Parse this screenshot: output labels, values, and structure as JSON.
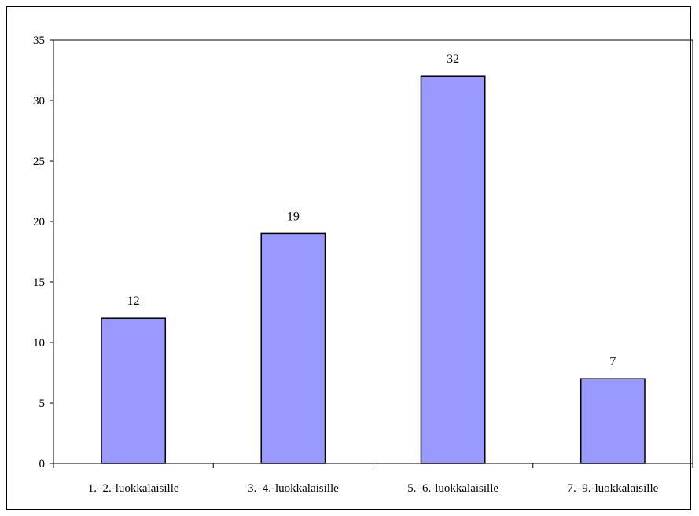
{
  "chart_data": {
    "type": "bar",
    "categories": [
      "1.–2.-luokkalaisille",
      "3.–4.-luokkalaisille",
      "5.–6.-luokkalaisille",
      "7.–9.-luokkalaisille"
    ],
    "values": [
      12,
      19,
      32,
      7
    ],
    "data_labels": [
      "12",
      "19",
      "32",
      "7"
    ],
    "title": "",
    "xlabel": "",
    "ylabel": "",
    "ylim": [
      0,
      35
    ],
    "yticks": [
      0,
      5,
      10,
      15,
      20,
      25,
      30,
      35
    ],
    "ytick_labels": [
      "0",
      "5",
      "10",
      "15",
      "20",
      "25",
      "30",
      "35"
    ],
    "grid": false,
    "legend": "none",
    "bar_color": "#9999ff",
    "bar_edge_color": "#000000"
  }
}
